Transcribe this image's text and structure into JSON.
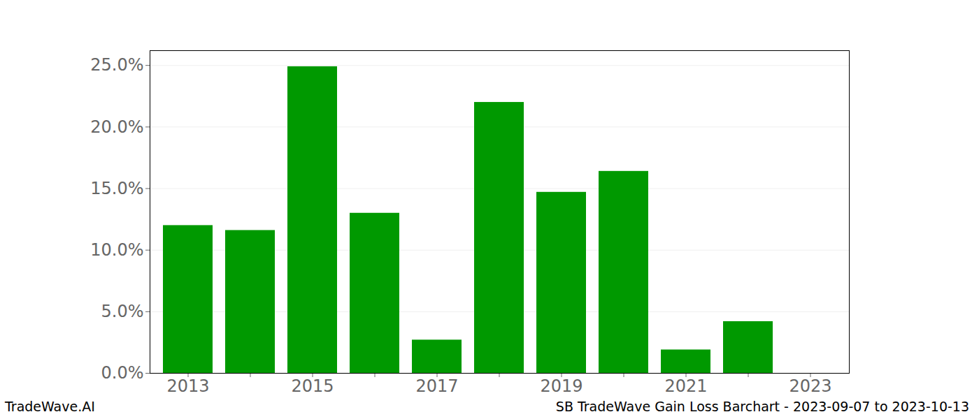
{
  "chart_data": {
    "type": "bar",
    "title": "SB TradeWave Gain Loss Barchart - 2023-09-07 to 2023-10-13",
    "source": "TradeWave.AI",
    "categories": [
      "2013",
      null,
      "2015",
      null,
      "2017",
      null,
      "2019",
      null,
      "2021",
      null,
      "2023"
    ],
    "values": [
      12.0,
      11.6,
      24.9,
      13.0,
      2.7,
      22.0,
      14.7,
      16.4,
      1.9,
      4.2,
      0
    ],
    "color": "#009900",
    "ylim": [
      0,
      26.2
    ],
    "yticks": [
      {
        "value": 0,
        "label": "0.0%"
      },
      {
        "value": 5,
        "label": "5.0%"
      },
      {
        "value": 10,
        "label": "10.0%"
      },
      {
        "value": 15,
        "label": "15.0%"
      },
      {
        "value": 20,
        "label": "20.0%"
      },
      {
        "value": 25,
        "label": "25.0%"
      }
    ],
    "grid": true
  }
}
